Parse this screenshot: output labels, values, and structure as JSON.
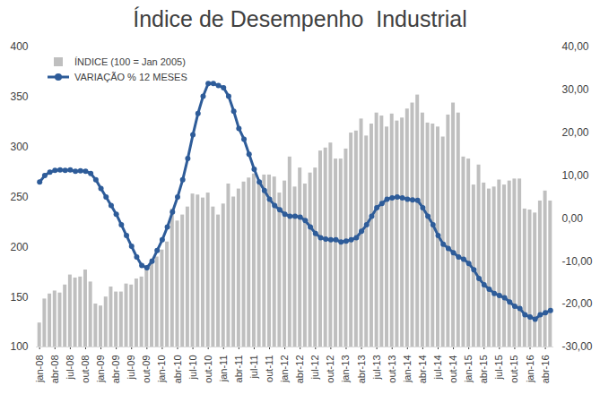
{
  "chart_data": {
    "type": "bar",
    "title": "Índice de Desempenho  Industrial",
    "legend": "upper left",
    "categories": [
      "jan-08",
      null,
      null,
      "abr-08",
      null,
      null,
      "jul-08",
      null,
      null,
      "out-08",
      null,
      null,
      "jan-09",
      null,
      null,
      "abr-09",
      null,
      null,
      "jul-09",
      null,
      null,
      "out-09",
      null,
      null,
      "jan-10",
      null,
      null,
      "abr-10",
      null,
      null,
      "jul-10",
      null,
      null,
      "out-10",
      null,
      null,
      "jan-11",
      null,
      null,
      "abr-11",
      null,
      null,
      "jul-11",
      null,
      null,
      "out-11",
      null,
      null,
      "jan-12",
      null,
      null,
      "abr-12",
      null,
      null,
      "jul-12",
      null,
      null,
      "out-12",
      null,
      null,
      "jan-13",
      null,
      null,
      "abr-13",
      null,
      null,
      "jul-13",
      null,
      null,
      "out-13",
      null,
      null,
      "jan-14",
      null,
      null,
      "abr-14",
      null,
      null,
      "jul-14",
      null,
      null,
      "out-14",
      null,
      null,
      "jan-15",
      null,
      null,
      "abr-15",
      null,
      null,
      "jul-15",
      null,
      null,
      "out-15",
      null,
      null,
      "jan-16",
      null,
      null,
      "abr-16",
      null
    ],
    "series": [
      {
        "name": "ÍNDICE (100 = Jan 2005)",
        "type": "bar",
        "color": "#bfbfbf",
        "values": [
          124,
          148,
          153,
          156,
          154,
          162,
          172,
          169,
          170,
          177,
          165,
          143,
          141,
          150,
          160,
          155,
          155,
          163,
          162,
          168,
          170,
          178,
          188,
          190,
          197,
          205,
          238,
          226,
          232,
          240,
          253,
          252,
          249,
          254,
          240,
          232,
          243,
          263,
          250,
          258,
          265,
          269,
          273,
          264,
          272,
          272,
          270,
          254,
          266,
          290,
          260,
          279,
          263,
          274,
          279,
          296,
          299,
          304,
          288,
          288,
          298,
          314,
          316,
          328,
          311,
          323,
          334,
          331,
          320,
          333,
          326,
          329,
          338,
          344,
          352,
          334,
          324,
          323,
          320,
          310,
          332,
          344,
          334,
          290,
          288,
          262,
          282,
          264,
          258,
          260,
          267,
          262,
          266,
          268,
          268,
          238,
          237,
          234,
          246,
          256,
          246
        ]
      },
      {
        "name": "VARIAÇÃO % 12 MESES",
        "type": "line",
        "axis": "y2",
        "color": "#2e5c99",
        "marker": "circle",
        "values": [
          8.5,
          10,
          10.8,
          11.2,
          11.3,
          11.2,
          11.3,
          11,
          11.1,
          11,
          10.5,
          9,
          7,
          5,
          3,
          1,
          -1.5,
          -4,
          -6.5,
          -9,
          -11,
          -11.5,
          -10,
          -7.5,
          -5,
          -2,
          1.5,
          5,
          9,
          14,
          19.5,
          24.5,
          28.5,
          31.5,
          31.5,
          31,
          30.5,
          28.5,
          25,
          21,
          18.5,
          15,
          11.5,
          8.5,
          6.5,
          4.5,
          3,
          2,
          1,
          0.5,
          0.5,
          0.3,
          -0.5,
          -2,
          -3.5,
          -4.5,
          -4.8,
          -5,
          -5,
          -5.5,
          -5.3,
          -5,
          -4.5,
          -3,
          -1.5,
          0.5,
          2.5,
          3.5,
          4.5,
          4.8,
          5,
          4.8,
          4.5,
          4.3,
          4.2,
          2.5,
          0.5,
          -1.5,
          -4,
          -6,
          -7,
          -8,
          -9,
          -9.5,
          -10.5,
          -12,
          -14,
          -15.5,
          -16.5,
          -17.5,
          -18,
          -18.5,
          -19.5,
          -20.5,
          -21,
          -22.5,
          -23,
          -23.5,
          -22.5,
          -22,
          -21.5
        ]
      }
    ],
    "ylim": [
      100,
      400
    ],
    "yticks": [
      100,
      150,
      200,
      250,
      300,
      350,
      400
    ],
    "y2lim": [
      -30,
      40
    ],
    "y2ticks": [
      {
        "value": -30,
        "label": "-30,00"
      },
      {
        "value": -20,
        "label": "-20,00"
      },
      {
        "value": -10,
        "label": "-10,00"
      },
      {
        "value": 0,
        "label": "0,00"
      },
      {
        "value": 10,
        "label": "10,00"
      },
      {
        "value": 20,
        "label": "20,00"
      },
      {
        "value": 30,
        "label": "30,00"
      },
      {
        "value": 40,
        "label": "40,00"
      }
    ],
    "grid": false
  }
}
